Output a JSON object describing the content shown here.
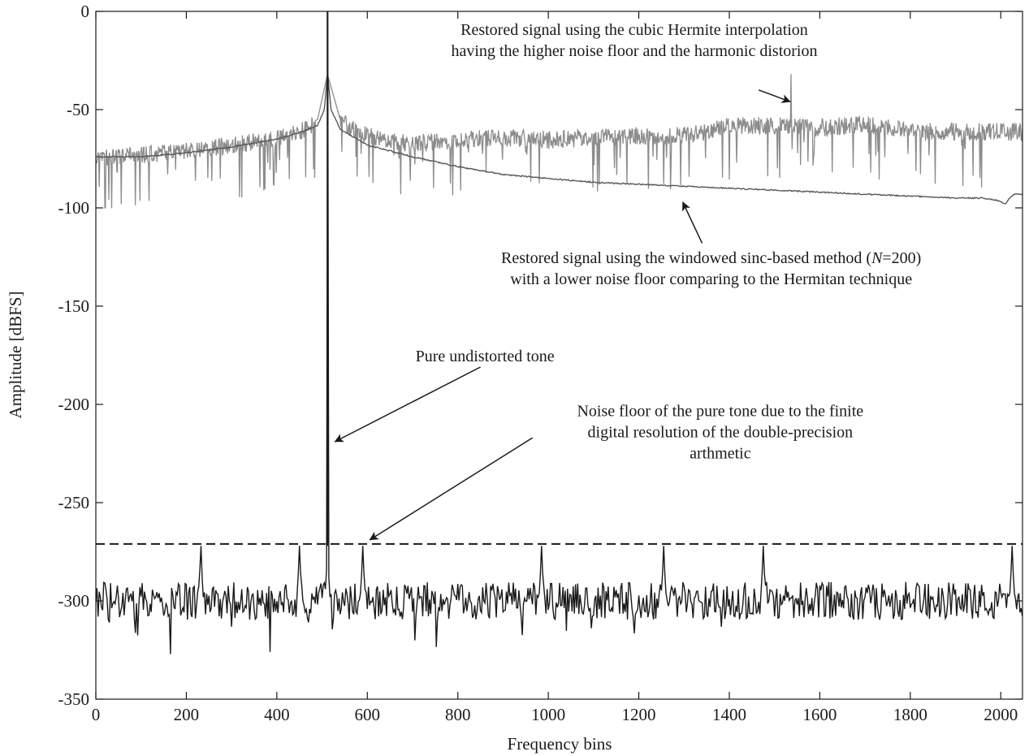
{
  "chart_data": {
    "type": "line",
    "xlabel": "Frequency bins",
    "ylabel": "Amplitude [dBFS]",
    "xlim": [
      0,
      2048
    ],
    "ylim": [
      -350,
      0
    ],
    "xticks": [
      0,
      200,
      400,
      600,
      800,
      1000,
      1200,
      1400,
      1600,
      1800,
      2000
    ],
    "yticks": [
      0,
      -50,
      -100,
      -150,
      -200,
      -250,
      -300,
      -350
    ],
    "grid": false,
    "series": [
      {
        "role": "hermite",
        "color": "#8c8c8c",
        "tone_bin": 512,
        "floor_points": [
          [
            0,
            -75
          ],
          [
            20,
            -73
          ],
          [
            100,
            -72
          ],
          [
            200,
            -70
          ],
          [
            300,
            -67
          ],
          [
            400,
            -63
          ],
          [
            460,
            -59
          ],
          [
            490,
            -55
          ],
          [
            512,
            -32
          ],
          [
            540,
            -55
          ],
          [
            600,
            -62
          ],
          [
            700,
            -66
          ],
          [
            800,
            -64
          ],
          [
            900,
            -63
          ],
          [
            1000,
            -64
          ],
          [
            1100,
            -63
          ],
          [
            1200,
            -62
          ],
          [
            1300,
            -62
          ],
          [
            1350,
            -60
          ],
          [
            1400,
            -57
          ],
          [
            1500,
            -57
          ],
          [
            1600,
            -58
          ],
          [
            1700,
            -56
          ],
          [
            1750,
            -58
          ],
          [
            1800,
            -60
          ],
          [
            1900,
            -60
          ],
          [
            2000,
            -60
          ],
          [
            2048,
            -60
          ]
        ],
        "notch": [
          [
            20,
            -100
          ],
          [
            22,
            -100
          ]
        ],
        "harmonic_spur": [
          1536,
          -32
        ]
      },
      {
        "role": "sinc",
        "color": "#595959",
        "tone_bin": 512,
        "points": [
          [
            0,
            -74
          ],
          [
            100,
            -74
          ],
          [
            200,
            -72
          ],
          [
            300,
            -69
          ],
          [
            400,
            -65
          ],
          [
            460,
            -61
          ],
          [
            490,
            -58
          ],
          [
            505,
            -50
          ],
          [
            512,
            -32
          ],
          [
            520,
            -50
          ],
          [
            540,
            -60
          ],
          [
            600,
            -68
          ],
          [
            700,
            -74
          ],
          [
            800,
            -79
          ],
          [
            900,
            -83
          ],
          [
            1000,
            -85
          ],
          [
            1100,
            -87
          ],
          [
            1200,
            -88
          ],
          [
            1300,
            -89
          ],
          [
            1400,
            -90
          ],
          [
            1500,
            -91
          ],
          [
            1600,
            -92
          ],
          [
            1700,
            -93
          ],
          [
            1800,
            -94
          ],
          [
            1900,
            -95
          ],
          [
            1960,
            -95
          ],
          [
            1990,
            -96
          ],
          [
            2000,
            -97
          ],
          [
            2010,
            -98
          ],
          [
            2020,
            -95
          ],
          [
            2030,
            -93
          ],
          [
            2048,
            -93
          ]
        ]
      },
      {
        "role": "pure_tone",
        "color": "#1a1a1a",
        "tone_bin": 512,
        "peak": 0,
        "floor_mean": -300,
        "floor_spread": 12,
        "spur_bins": [
          232,
          450,
          512,
          590,
          985,
          1255,
          1475,
          2025
        ],
        "spur_level": -272
      },
      {
        "role": "noise_floor_limit",
        "style": "dashed",
        "color": "#1a1a1a",
        "y": -271
      }
    ],
    "annotations": [
      {
        "lines": [
          "Restored signal using the cubic Hermite interpolation",
          "having the higher noise floor and the harmonic distorion"
        ],
        "text_anchor": [
          1190,
          -12
        ],
        "arrow_from": [
          1465,
          -40
        ],
        "arrow_to": [
          1535,
          -46
        ]
      },
      {
        "lines_rich": [
          [
            {
              "t": "Restored signal using the windowed sinc-based method ("
            },
            {
              "t": "N",
              "italic": true
            },
            {
              "t": "=200)"
            }
          ],
          [
            {
              "t": "with a lower noise floor comparing to the Hermitan technique"
            }
          ]
        ],
        "text_anchor": [
          1360,
          -128
        ],
        "arrow_from": [
          1340,
          -118
        ],
        "arrow_to": [
          1297,
          -97
        ]
      },
      {
        "lines": [
          "Pure undistorted tone"
        ],
        "text_anchor": [
          860,
          -178
        ],
        "arrow_from": [
          850,
          -181
        ],
        "arrow_to": [
          528,
          -219
        ]
      },
      {
        "lines": [
          "Noise floor of the pure tone due to the finite",
          "digital resolution of the double-precision",
          "arthmetic"
        ],
        "text_anchor": [
          1380,
          -206
        ],
        "arrow_from": [
          965,
          -217
        ],
        "arrow_to": [
          605,
          -269
        ]
      }
    ]
  }
}
